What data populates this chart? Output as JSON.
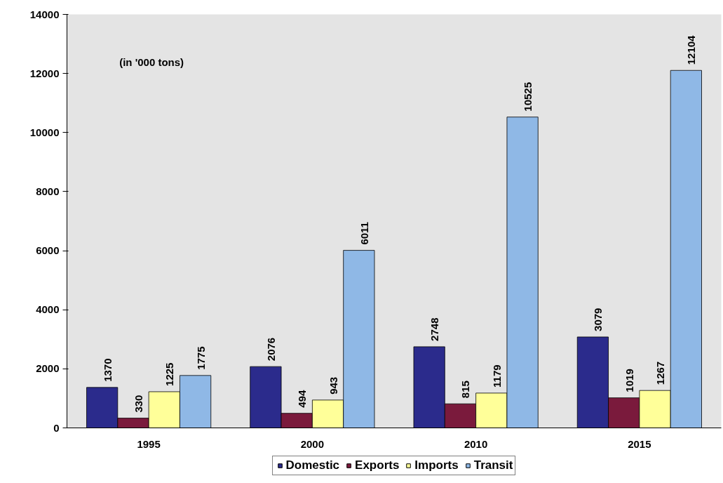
{
  "chart_data": {
    "type": "bar",
    "categories": [
      "1995",
      "2000",
      "2010",
      "2015"
    ],
    "series": [
      {
        "name": "Domestic",
        "color": "#2b2b8c",
        "values": [
          1370,
          2076,
          2748,
          3079
        ]
      },
      {
        "name": "Exports",
        "color": "#7a1a3c",
        "values": [
          330,
          494,
          815,
          1019
        ]
      },
      {
        "name": "Imports",
        "color": "#ffff99",
        "values": [
          1225,
          943,
          1179,
          1267
        ]
      },
      {
        "name": "Transit",
        "color": "#8fb8e6",
        "values": [
          1775,
          6011,
          10525,
          12104
        ]
      }
    ],
    "ylim": [
      0,
      14000
    ],
    "yticks": [
      0,
      2000,
      4000,
      6000,
      8000,
      10000,
      12000,
      14000
    ],
    "annotations": [
      "(in '000 tons)"
    ],
    "data_labels": true,
    "grid": false,
    "legend": "bottom"
  }
}
